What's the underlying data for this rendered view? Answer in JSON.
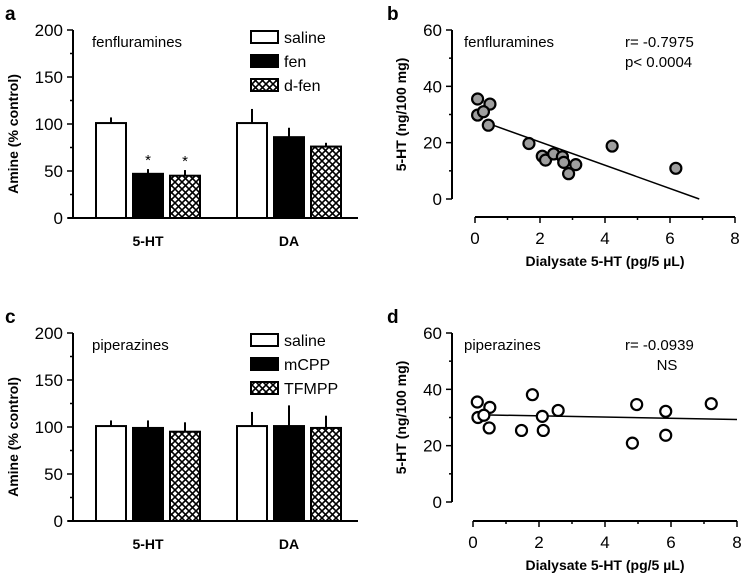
{
  "chart_data": [
    {
      "panel": "a",
      "type": "bar",
      "annotation": "fenfluramines",
      "ylabel": "Amine (% control)",
      "ylim": [
        0,
        200
      ],
      "yticks": [
        0,
        50,
        100,
        150,
        200
      ],
      "categories": [
        "5-HT",
        "DA"
      ],
      "series": [
        {
          "name": "saline",
          "fill": "white",
          "values": [
            101,
            101
          ],
          "errors": [
            6,
            15
          ]
        },
        {
          "name": "fen",
          "fill": "black",
          "values": [
            47,
            86
          ],
          "errors": [
            5,
            10
          ]
        },
        {
          "name": "d-fen",
          "fill": "crosshatch",
          "values": [
            45,
            76
          ],
          "errors": [
            6,
            4
          ]
        }
      ],
      "significance": [
        [
          "",
          ""
        ],
        [
          "*",
          ""
        ],
        [
          "*",
          ""
        ]
      ],
      "legend": "top-right"
    },
    {
      "panel": "b",
      "type": "scatter",
      "annotation": "fenfluramines",
      "stats": [
        "r= -0.7975",
        "p< 0.0004"
      ],
      "xlabel": "Dialysate 5-HT (pg/5 µL)",
      "ylabel": "5-HT (ng/100 mg)",
      "xlim": [
        0,
        8
      ],
      "ylim": [
        0,
        60
      ],
      "xticks": [
        0,
        2,
        4,
        6,
        8
      ],
      "yticks": [
        0,
        20,
        40,
        60
      ],
      "marker_fill": "#9e9e9e",
      "points": [
        [
          0.08,
          35.5
        ],
        [
          0.46,
          33.7
        ],
        [
          0.08,
          29.8
        ],
        [
          0.26,
          31
        ],
        [
          0.41,
          26.2
        ],
        [
          1.66,
          19.7
        ],
        [
          2.07,
          15.2
        ],
        [
          2.17,
          13.8
        ],
        [
          2.42,
          16
        ],
        [
          2.69,
          15
        ],
        [
          2.73,
          13
        ],
        [
          2.88,
          9
        ],
        [
          3.1,
          12.2
        ],
        [
          4.22,
          18.8
        ],
        [
          6.18,
          10.9
        ]
      ],
      "fit_line": [
        [
          0.46,
          26.6
        ],
        [
          6.9,
          0
        ]
      ]
    },
    {
      "panel": "c",
      "type": "bar",
      "annotation": "piperazines",
      "ylabel": "Amine (% control)",
      "ylim": [
        0,
        200
      ],
      "yticks": [
        0,
        50,
        100,
        150,
        200
      ],
      "categories": [
        "5-HT",
        "DA"
      ],
      "series": [
        {
          "name": "saline",
          "fill": "white",
          "values": [
            101,
            101
          ],
          "errors": [
            6,
            15
          ]
        },
        {
          "name": "mCPP",
          "fill": "black",
          "values": [
            99,
            101
          ],
          "errors": [
            8,
            22
          ]
        },
        {
          "name": "TFMPP",
          "fill": "crosshatch",
          "values": [
            95,
            99
          ],
          "errors": [
            10,
            13
          ]
        }
      ],
      "legend": "top-right"
    },
    {
      "panel": "d",
      "type": "scatter",
      "annotation": "piperazines",
      "stats": [
        "r= -0.0939",
        "NS"
      ],
      "xlabel": "Dialysate 5-HT (pg/5 µL)",
      "ylabel": "5-HT (ng/100 mg)",
      "xlim": [
        0,
        8
      ],
      "ylim": [
        0,
        60
      ],
      "xticks": [
        0,
        2,
        4,
        6,
        8
      ],
      "yticks": [
        0,
        20,
        40,
        60
      ],
      "marker_fill": "#ffffff",
      "points": [
        [
          0.13,
          35.5
        ],
        [
          0.51,
          33.6
        ],
        [
          0.15,
          30
        ],
        [
          0.33,
          30.8
        ],
        [
          0.49,
          26.3
        ],
        [
          1.47,
          25.4
        ],
        [
          1.8,
          38.1
        ],
        [
          2.1,
          30.4
        ],
        [
          2.13,
          25.4
        ],
        [
          2.58,
          32.5
        ],
        [
          4.83,
          20.9
        ],
        [
          4.96,
          34.6
        ],
        [
          5.84,
          23.7
        ],
        [
          5.84,
          32.2
        ],
        [
          7.22,
          34.9
        ]
      ],
      "fit_line": [
        [
          0.5,
          30.9
        ],
        [
          8,
          29.3
        ]
      ]
    }
  ]
}
